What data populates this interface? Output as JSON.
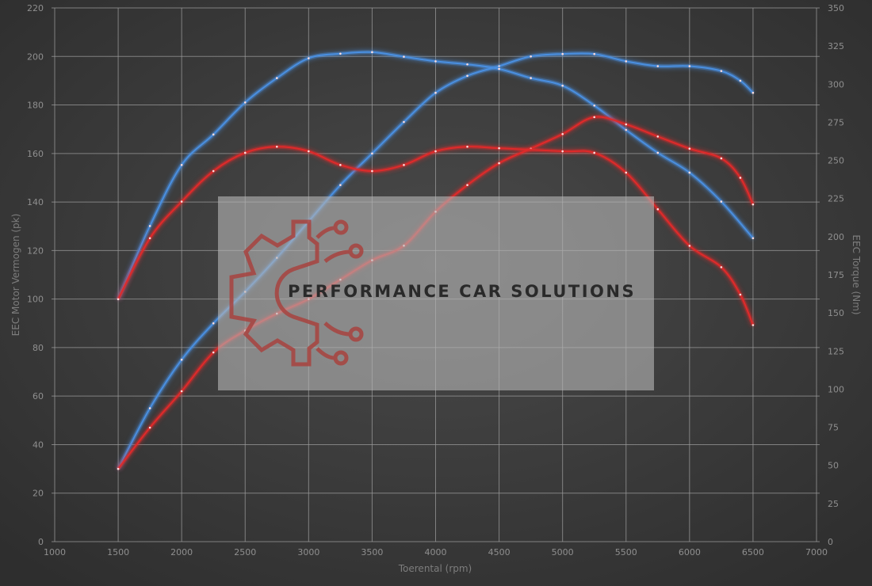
{
  "chart_data": {
    "type": "line",
    "title": "",
    "xlabel": "Toerental (rpm)",
    "ylabel": "EEC Motor Vermogen (pk)",
    "y2label": "EEC Torque (Nm)",
    "xlim": [
      1000,
      7000
    ],
    "ylim": [
      0,
      220
    ],
    "y2lim": [
      0,
      350
    ],
    "xticks": [
      1000,
      1500,
      2000,
      2500,
      3000,
      3500,
      4000,
      4500,
      5000,
      5500,
      6000,
      6500,
      7000
    ],
    "yticks": [
      0,
      20,
      40,
      60,
      80,
      100,
      120,
      140,
      160,
      180,
      200,
      220
    ],
    "y2ticks": [
      0,
      25,
      50,
      75,
      100,
      125,
      150,
      175,
      200,
      225,
      250,
      275,
      300,
      325,
      350
    ],
    "grid": true,
    "watermark": "PERFORMANCE CAR SOLUTIONS",
    "series": [
      {
        "id": "power_blue",
        "axis": "left",
        "color": "#4a8fe0",
        "x": [
          1500,
          1750,
          2000,
          2250,
          2500,
          2750,
          3000,
          3250,
          3500,
          3750,
          4000,
          4250,
          4500,
          4750,
          5000,
          5250,
          5500,
          5750,
          6000,
          6250,
          6400,
          6500
        ],
        "y": [
          30,
          55,
          75,
          90,
          103,
          117,
          132,
          147,
          160,
          173,
          185,
          192,
          196,
          200,
          201,
          201,
          198,
          196,
          196,
          194,
          190,
          185
        ]
      },
      {
        "id": "torque_blue",
        "axis": "right",
        "color": "#4a8fe0",
        "x": [
          1500,
          1750,
          2000,
          2250,
          2500,
          2750,
          3000,
          3250,
          3500,
          3750,
          4000,
          4250,
          4500,
          4750,
          5000,
          5250,
          5500,
          5750,
          6000,
          6250,
          6500
        ],
        "y": [
          159,
          207,
          247,
          267,
          288,
          304,
          317,
          320,
          321,
          318,
          315,
          313,
          310,
          304,
          299,
          286,
          270,
          255,
          242,
          223,
          199
        ]
      },
      {
        "id": "power_red",
        "axis": "left",
        "color": "#e02a2a",
        "x": [
          1500,
          1750,
          2000,
          2250,
          2500,
          2750,
          3000,
          3250,
          3500,
          3750,
          4000,
          4250,
          4500,
          4750,
          5000,
          5250,
          5500,
          5750,
          6000,
          6250,
          6400,
          6500
        ],
        "y": [
          30,
          47,
          62,
          78,
          87,
          94,
          100,
          108,
          116,
          122,
          136,
          147,
          156,
          162,
          168,
          175,
          172,
          167,
          162,
          158,
          150,
          139
        ]
      },
      {
        "id": "torque_red",
        "axis": "right",
        "color": "#e02a2a",
        "x": [
          1500,
          1750,
          2000,
          2250,
          2500,
          2750,
          3000,
          3250,
          3500,
          3750,
          4000,
          4250,
          4500,
          5000,
          5250,
          5500,
          5750,
          6000,
          6250,
          6400,
          6500
        ],
        "y": [
          159,
          199,
          223,
          243,
          255,
          259,
          256,
          247,
          243,
          247,
          256,
          259,
          258,
          256,
          255,
          242,
          218,
          194,
          180,
          162,
          142
        ]
      }
    ]
  }
}
